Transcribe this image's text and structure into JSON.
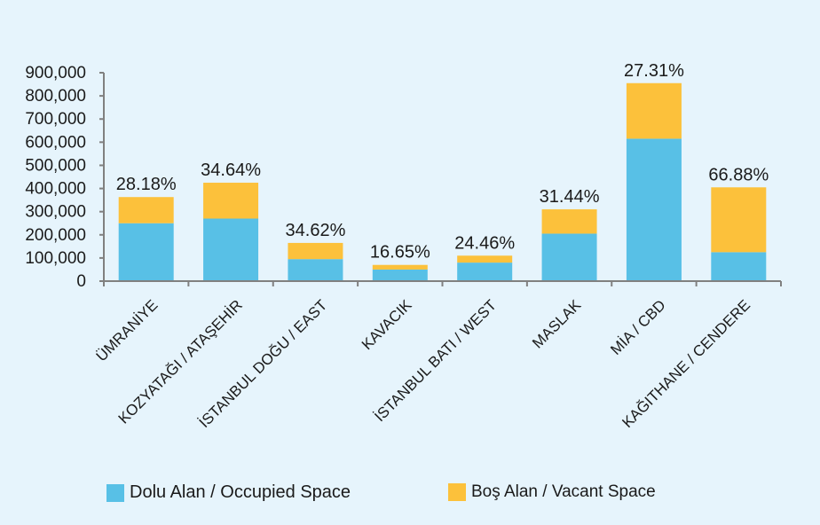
{
  "chart_data": {
    "type": "bar",
    "stacked": true,
    "categories": [
      "ÜMRANİYE",
      "KOZYATAĞI / ATAŞEHİR",
      "İSTANBUL DOĞU / EAST",
      "KAVACIK",
      "İSTANBUL BATI / WEST",
      "MASLAK",
      "MİA / CBD",
      "KAĞITHANE / CENDERE"
    ],
    "series": [
      {
        "name": "Dolu Alan / Occupied Space",
        "color": "#58c0e6",
        "values": [
          250000,
          270000,
          95000,
          50000,
          80000,
          205000,
          615000,
          125000
        ]
      },
      {
        "name": "Boş Alan / Vacant Space",
        "color": "#fcc13b",
        "values": [
          113000,
          155000,
          70000,
          20000,
          30000,
          105000,
          240000,
          280000
        ]
      }
    ],
    "bar_labels": [
      "28.18%",
      "34.64%",
      "34.62%",
      "16.65%",
      "24.46%",
      "31.44%",
      "27.31%",
      "66.88%"
    ],
    "y_ticks": [
      "0",
      "100,000",
      "200,000",
      "300,000",
      "400,000",
      "500,000",
      "600,000",
      "700,000",
      "800,000",
      "900,000"
    ],
    "ylim": [
      0,
      900000
    ],
    "title": "",
    "xlabel": "",
    "ylabel": "",
    "grid": false,
    "legend_position": "bottom"
  }
}
